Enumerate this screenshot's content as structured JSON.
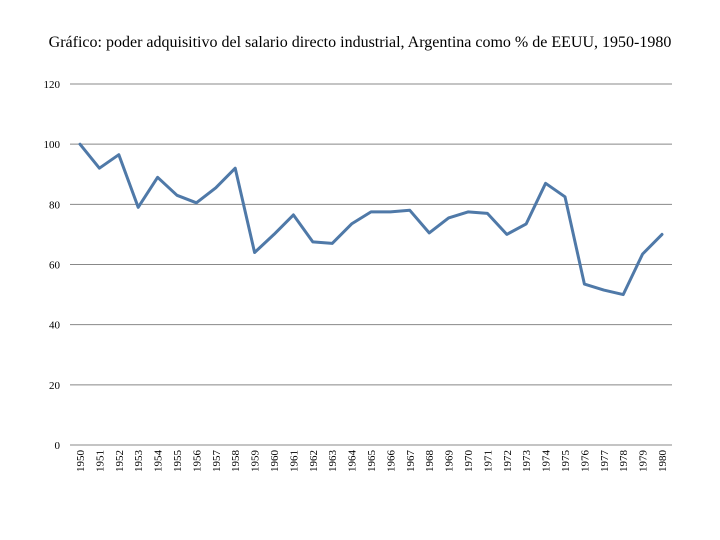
{
  "chart_data": {
    "type": "line",
    "title": "Gráfico: poder adquisitivo del salario directo industrial, Argentina como % de EEUU, 1950-1980",
    "xlabel": "",
    "ylabel": "",
    "ylim": [
      0,
      120
    ],
    "yticks": [
      0,
      20,
      40,
      60,
      80,
      100,
      120
    ],
    "grid": true,
    "legend": "none",
    "x": [
      "1950",
      "1951",
      "1952",
      "1953",
      "1954",
      "1955",
      "1956",
      "1957",
      "1958",
      "1959",
      "1960",
      "1961",
      "1962",
      "1963",
      "1964",
      "1965",
      "1966",
      "1967",
      "1968",
      "1969",
      "1970",
      "1971",
      "1972",
      "1973",
      "1974",
      "1975",
      "1976",
      "1977",
      "1978",
      "1979",
      "1980"
    ],
    "series": [
      {
        "values": [
          100,
          92,
          96.5,
          79,
          89,
          83,
          80.5,
          85.5,
          92,
          64,
          70,
          76.5,
          67.5,
          67,
          73.5,
          77.5,
          77.5,
          78,
          70.5,
          75.5,
          77.5,
          77,
          70,
          73.5,
          87,
          82.5,
          53.5,
          51.5,
          50,
          63.5,
          70
        ],
        "color": "#4f79a8"
      }
    ],
    "grid_color": "#888888"
  }
}
